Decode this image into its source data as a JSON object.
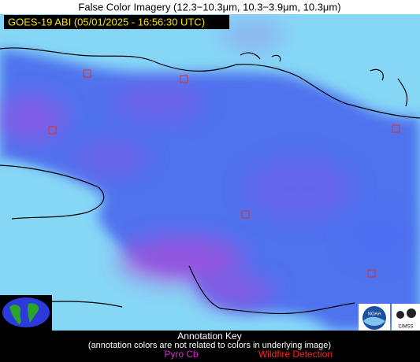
{
  "header": {
    "title": "False Color Imagery (12.3−10.3μm, 10.3−3.9μm, 10.3μm)",
    "label": "GOES-19 ABI (05/01/2025 - 16:56:30 UTC)"
  },
  "logos": {
    "noaa": "NOAA",
    "cimss": "CIMSS"
  },
  "key": {
    "title": "Annotation Key",
    "note": "(annotation colors are not related to colors in underlying image)",
    "items": [
      "Pyro Cb",
      "Wildfire Detection"
    ]
  }
}
